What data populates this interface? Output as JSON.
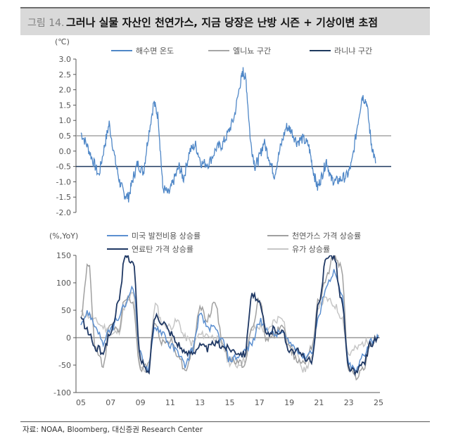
{
  "figure": {
    "number": "그림 14.",
    "title": "그러나 실물 자산인 천연가스, 지금 당장은 난방 시즌 + 기상이변 초점",
    "source": "자료: NOAA, Bloomberg, 대신증권 Research Center"
  },
  "chart_data": [
    {
      "type": "line",
      "title": "",
      "ylabel": "(℃)",
      "ylim": [
        -2.0,
        3.0
      ],
      "yticks": [
        "3.0",
        "2.5",
        "2.0",
        "1.5",
        "1.0",
        "0.5",
        "0.0",
        "-0.5",
        "-1.0",
        "-1.5",
        "-2.0"
      ],
      "legend_position": "top",
      "x_range": [
        2005,
        2025
      ],
      "series": [
        {
          "name": "해수면 온도",
          "color": "#4f87c7",
          "x": [
            2005.0,
            2005.4,
            2005.8,
            2006.2,
            2006.6,
            2006.9,
            2007.3,
            2007.6,
            2007.9,
            2008.2,
            2008.5,
            2008.8,
            2009.2,
            2009.5,
            2009.9,
            2010.2,
            2010.5,
            2010.9,
            2011.2,
            2011.6,
            2011.9,
            2012.3,
            2012.7,
            2013.1,
            2013.6,
            2014.1,
            2014.5,
            2014.9,
            2015.3,
            2015.7,
            2015.9,
            2016.1,
            2016.4,
            2016.7,
            2017.0,
            2017.3,
            2017.7,
            2018.0,
            2018.4,
            2018.8,
            2019.1,
            2019.5,
            2019.9,
            2020.3,
            2020.6,
            2020.9,
            2021.2,
            2021.5,
            2021.8,
            2022.1,
            2022.5,
            2022.9,
            2023.2,
            2023.6,
            2023.9,
            2024.2,
            2024.5,
            2024.8
          ],
          "values": [
            0.6,
            0.2,
            -0.3,
            -0.8,
            0.2,
            0.9,
            -0.3,
            -1.0,
            -1.4,
            -1.5,
            -0.9,
            -0.4,
            -0.7,
            0.4,
            1.6,
            1.1,
            -1.2,
            -1.4,
            -1.0,
            -0.5,
            -0.9,
            0.0,
            0.2,
            -0.4,
            -0.4,
            0.1,
            0.2,
            0.6,
            1.1,
            2.2,
            2.6,
            2.3,
            0.3,
            -0.5,
            -0.2,
            0.3,
            -0.3,
            -0.8,
            0.1,
            0.8,
            0.7,
            0.3,
            0.4,
            0.2,
            -0.6,
            -1.2,
            -0.8,
            -0.3,
            -0.9,
            -1.0,
            -0.9,
            -0.8,
            -0.4,
            0.9,
            1.8,
            1.6,
            0.3,
            -0.4
          ]
        },
        {
          "name": "엘니뇨 구간",
          "color": "#a6a6a6",
          "threshold": 0.5
        },
        {
          "name": "라니냐 구간",
          "color": "#1f3a5f",
          "threshold": -0.5
        }
      ]
    },
    {
      "type": "line",
      "title": "",
      "ylabel": "(%,YoY)",
      "ylim": [
        -100,
        150
      ],
      "yticks": [
        "150",
        "100",
        "50",
        "0",
        "-50",
        "-100"
      ],
      "categories": [
        "05",
        "07",
        "09",
        "11",
        "13",
        "15",
        "17",
        "19",
        "21",
        "23",
        "25"
      ],
      "legend_position": "top",
      "x_range": [
        2005,
        2025
      ],
      "series": [
        {
          "name": "미국 발전비용 상승률",
          "color": "#5b8fd0",
          "x": [
            2005.0,
            2005.5,
            2006.0,
            2006.5,
            2007.0,
            2007.5,
            2008.0,
            2008.5,
            2009.0,
            2009.5,
            2010.0,
            2010.5,
            2011.0,
            2011.5,
            2012.0,
            2012.5,
            2013.0,
            2013.5,
            2014.0,
            2014.5,
            2015.0,
            2015.5,
            2016.0,
            2016.5,
            2017.0,
            2017.5,
            2018.0,
            2018.5,
            2019.0,
            2019.5,
            2020.0,
            2020.5,
            2021.0,
            2021.5,
            2022.0,
            2022.5,
            2023.0,
            2023.5,
            2024.0,
            2024.5,
            2025.0
          ],
          "values": [
            30,
            45,
            20,
            -10,
            15,
            35,
            60,
            95,
            -30,
            -60,
            20,
            10,
            -15,
            -25,
            -50,
            -20,
            40,
            20,
            15,
            -5,
            -40,
            -35,
            -25,
            -10,
            30,
            15,
            5,
            10,
            -10,
            -20,
            -35,
            -25,
            40,
            95,
            120,
            80,
            -50,
            -60,
            -30,
            -5,
            0
          ]
        },
        {
          "name": "천연가스 가격 상승률",
          "color": "#a0a0a0",
          "x": [
            2005.0,
            2005.5,
            2006.0,
            2006.5,
            2007.0,
            2007.5,
            2008.0,
            2008.5,
            2009.0,
            2009.5,
            2010.0,
            2010.5,
            2011.0,
            2011.5,
            2012.0,
            2012.5,
            2013.0,
            2013.5,
            2014.0,
            2014.5,
            2015.0,
            2015.5,
            2016.0,
            2016.5,
            2017.0,
            2017.5,
            2018.0,
            2018.5,
            2019.0,
            2019.5,
            2020.0,
            2020.5,
            2021.0,
            2021.5,
            2022.0,
            2022.5,
            2023.0,
            2023.5,
            2024.0,
            2024.5,
            2025.0
          ],
          "values": [
            40,
            135,
            -20,
            -50,
            30,
            10,
            75,
            60,
            -55,
            -50,
            25,
            -10,
            -5,
            -30,
            -60,
            -25,
            55,
            35,
            65,
            -5,
            -40,
            -45,
            -50,
            15,
            70,
            -5,
            5,
            25,
            -20,
            -40,
            -45,
            -15,
            70,
            110,
            150,
            130,
            -60,
            -70,
            -55,
            -10,
            5
          ]
        },
        {
          "name": "연료탄 가격 상승률",
          "color": "#1f3864",
          "x": [
            2005.0,
            2005.5,
            2006.0,
            2006.5,
            2007.0,
            2007.5,
            2008.0,
            2008.5,
            2009.0,
            2009.5,
            2010.0,
            2010.5,
            2011.0,
            2011.5,
            2012.0,
            2012.5,
            2013.0,
            2013.5,
            2014.0,
            2014.5,
            2015.0,
            2015.5,
            2016.0,
            2016.5,
            2017.0,
            2017.5,
            2018.0,
            2018.5,
            2019.0,
            2019.5,
            2020.0,
            2020.5,
            2021.0,
            2021.5,
            2022.0,
            2022.5,
            2023.0,
            2023.5,
            2024.0,
            2024.5,
            2025.0
          ],
          "values": [
            35,
            10,
            -20,
            -25,
            10,
            60,
            150,
            140,
            -40,
            -65,
            40,
            30,
            10,
            -10,
            -30,
            -25,
            -15,
            -20,
            -10,
            -15,
            -20,
            -25,
            -30,
            80,
            60,
            5,
            15,
            10,
            -20,
            -25,
            -35,
            -45,
            60,
            150,
            150,
            70,
            -55,
            -65,
            -45,
            -10,
            0
          ]
        },
        {
          "name": "유가 상승률",
          "color": "#c6c6c6",
          "x": [
            2005.0,
            2005.5,
            2006.0,
            2006.5,
            2007.0,
            2007.5,
            2008.0,
            2008.5,
            2009.0,
            2009.5,
            2010.0,
            2010.5,
            2011.0,
            2011.5,
            2012.0,
            2012.5,
            2013.0,
            2013.5,
            2014.0,
            2014.5,
            2015.0,
            2015.5,
            2016.0,
            2016.5,
            2017.0,
            2017.5,
            2018.0,
            2018.5,
            2019.0,
            2019.5,
            2020.0,
            2020.5,
            2021.0,
            2021.5,
            2022.0,
            2022.5,
            2023.0,
            2023.5,
            2024.0,
            2024.5,
            2025.0
          ],
          "values": [
            45,
            40,
            30,
            20,
            5,
            10,
            60,
            80,
            -55,
            -60,
            60,
            25,
            20,
            30,
            0,
            -10,
            5,
            5,
            0,
            -15,
            -45,
            -50,
            -40,
            15,
            20,
            10,
            30,
            40,
            -15,
            -25,
            -60,
            -40,
            60,
            70,
            60,
            40,
            -30,
            -20,
            -10,
            -5,
            0
          ]
        }
      ]
    }
  ]
}
